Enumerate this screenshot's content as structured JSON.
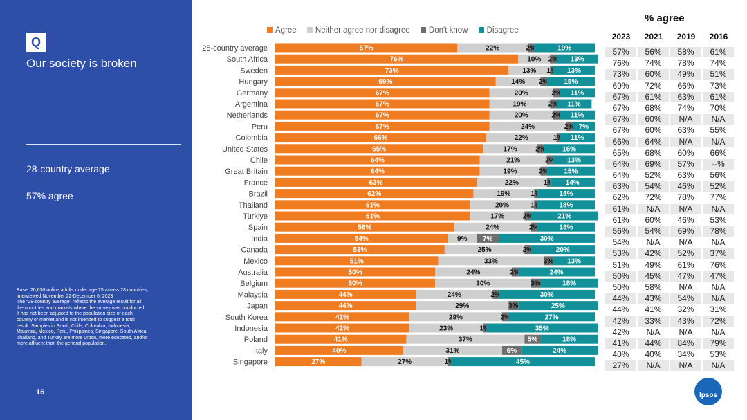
{
  "slide": {
    "badge": "Q",
    "title": "Our society is broken",
    "avg_label": "28-country average",
    "avg_value": "57% agree",
    "page_number": "16",
    "footnote": [
      "Base: 20,630 online adults under age 75 across 28 countries,",
      "interviewed November 22-December 6, 2023",
      "The “28-country average” reflects the average result for all",
      "the countries and markets where the survey was conducted.",
      "It has not been adjusted to the population size of each",
      "country or market and is not intended to suggest a total",
      "result. Samples in Brazil, Chile, Colombia, Indonesia,",
      "Malaysia, Mexico, Peru, Philippines, Singapore, South Africa,",
      "Thailand, and Turkey are more urban, more educated, and/or",
      "more affluent than the general population."
    ],
    "logo_text": "Ipsos"
  },
  "chart_data": {
    "type": "bar",
    "orientation": "horizontal",
    "stacked": true,
    "colors": {
      "Agree": "#f07c22",
      "Neither agree nor disagree": "#cfcfcf",
      "Don't know": "#6e6e6e",
      "Disagree": "#13919b"
    },
    "legend": [
      "Agree",
      "Neither agree nor disagree",
      "Don't know",
      "Disagree"
    ],
    "legend_position": "top",
    "categories": [
      "28-country average",
      "South Africa",
      "Sweden",
      "Hungary",
      "Germany",
      "Argentina",
      "Netherlands",
      "Peru",
      "Colombia",
      "United States",
      "Chile",
      "Great Britain",
      "France",
      "Brazil",
      "Thailand",
      "Türkiye",
      "Spain",
      "India",
      "Canada",
      "Mexico",
      "Australia",
      "Belgium",
      "Malaysia",
      "Japan",
      "South Korea",
      "Indonesia",
      "Poland",
      "Italy",
      "Singapore"
    ],
    "series": [
      {
        "name": "Agree",
        "values": [
          57,
          76,
          73,
          69,
          67,
          67,
          67,
          67,
          66,
          65,
          64,
          64,
          63,
          62,
          61,
          61,
          56,
          54,
          53,
          51,
          50,
          50,
          44,
          44,
          42,
          42,
          41,
          40,
          27
        ]
      },
      {
        "name": "Neither agree nor disagree",
        "values": [
          22,
          10,
          13,
          14,
          20,
          19,
          20,
          24,
          22,
          17,
          21,
          19,
          22,
          19,
          20,
          17,
          24,
          9,
          25,
          33,
          24,
          30,
          24,
          29,
          29,
          23,
          37,
          31,
          27
        ]
      },
      {
        "name": "Don't know",
        "values": [
          2,
          2,
          1,
          2,
          2,
          2,
          2,
          2,
          1,
          2,
          2,
          2,
          1,
          1,
          1,
          2,
          2,
          7,
          2,
          3,
          2,
          3,
          2,
          3,
          2,
          1,
          5,
          6,
          1
        ]
      },
      {
        "name": "Disagree",
        "values": [
          19,
          13,
          13,
          15,
          11,
          11,
          11,
          7,
          11,
          16,
          13,
          15,
          14,
          18,
          18,
          21,
          18,
          30,
          20,
          13,
          24,
          18,
          30,
          25,
          27,
          35,
          18,
          24,
          45
        ]
      }
    ],
    "xlim": [
      0,
      100
    ],
    "title": "",
    "xlabel": "",
    "ylabel": ""
  },
  "table": {
    "title": "% agree",
    "years": [
      "2023",
      "2021",
      "2019",
      "2016"
    ],
    "rows": [
      [
        "57%",
        "56%",
        "58%",
        "61%"
      ],
      [
        "76%",
        "74%",
        "78%",
        "74%"
      ],
      [
        "73%",
        "60%",
        "49%",
        "51%"
      ],
      [
        "69%",
        "72%",
        "66%",
        "73%"
      ],
      [
        "67%",
        "61%",
        "63%",
        "61%"
      ],
      [
        "67%",
        "68%",
        "74%",
        "70%"
      ],
      [
        "67%",
        "60%",
        "N/A",
        "N/A"
      ],
      [
        "67%",
        "60%",
        "63%",
        "55%"
      ],
      [
        "66%",
        "64%",
        "N/A",
        "N/A"
      ],
      [
        "65%",
        "68%",
        "60%",
        "66%"
      ],
      [
        "64%",
        "69%",
        "57%",
        "--%"
      ],
      [
        "64%",
        "52%",
        "63%",
        "56%"
      ],
      [
        "63%",
        "54%",
        "46%",
        "52%"
      ],
      [
        "62%",
        "72%",
        "78%",
        "77%"
      ],
      [
        "61%",
        "N/A",
        "N/A",
        "N/A"
      ],
      [
        "61%",
        "60%",
        "46%",
        "53%"
      ],
      [
        "56%",
        "54%",
        "69%",
        "78%"
      ],
      [
        "54%",
        "N/A",
        "N/A",
        "N/A"
      ],
      [
        "53%",
        "42%",
        "52%",
        "37%"
      ],
      [
        "51%",
        "49%",
        "61%",
        "76%"
      ],
      [
        "50%",
        "45%",
        "47%",
        "47%"
      ],
      [
        "50%",
        "58%",
        "N/A",
        "N/A"
      ],
      [
        "44%",
        "43%",
        "54%",
        "N/A"
      ],
      [
        "44%",
        "41%",
        "32%",
        "31%"
      ],
      [
        "42%",
        "33%",
        "43%",
        "72%"
      ],
      [
        "42%",
        "N/A",
        "N/A",
        "N/A"
      ],
      [
        "41%",
        "44%",
        "84%",
        "79%"
      ],
      [
        "40%",
        "40%",
        "34%",
        "53%"
      ],
      [
        "27%",
        "N/A",
        "N/A",
        "N/A"
      ]
    ]
  }
}
